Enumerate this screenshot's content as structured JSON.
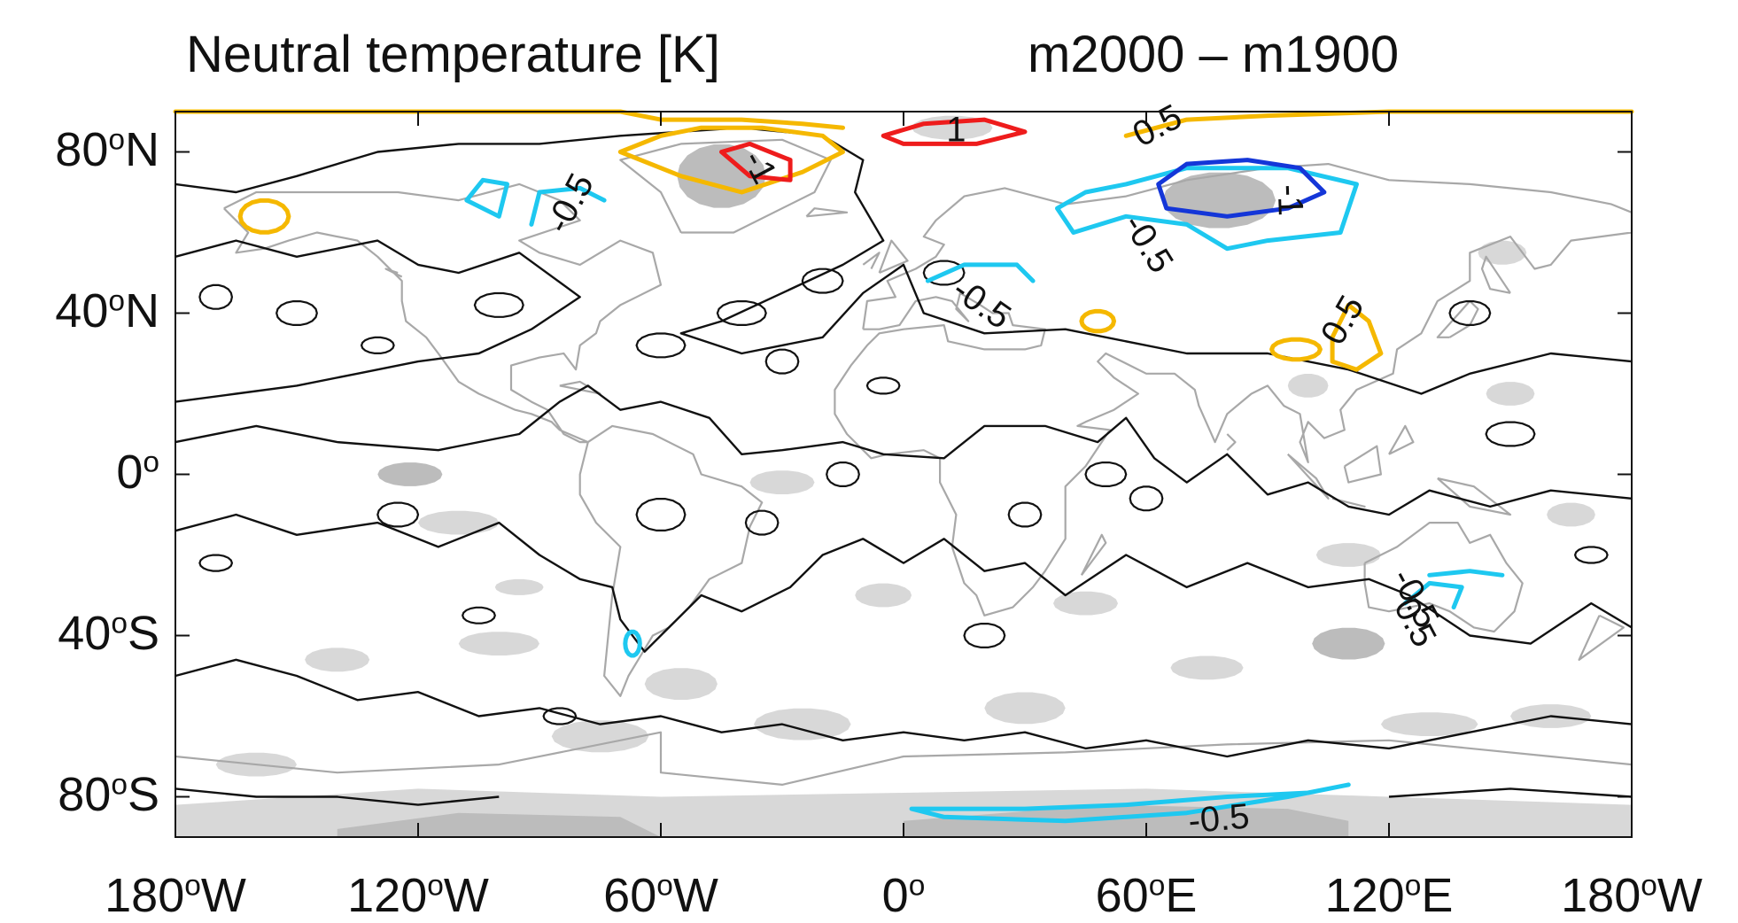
{
  "title_left": "Neutral temperature [K]",
  "title_right": "m2000 – m1900",
  "y_axis_labels": [
    {
      "deg": "80",
      "hemi": "N",
      "lat": 80
    },
    {
      "deg": "40",
      "hemi": "N",
      "lat": 40
    },
    {
      "deg": "0",
      "hemi": "",
      "lat": 0
    },
    {
      "deg": "40",
      "hemi": "S",
      "lat": -40
    },
    {
      "deg": "80",
      "hemi": "S",
      "lat": -80
    }
  ],
  "x_axis_labels": [
    {
      "deg": "180",
      "hemi": "W",
      "lon": -180
    },
    {
      "deg": "120",
      "hemi": "W",
      "lon": -120
    },
    {
      "deg": "60",
      "hemi": "W",
      "lon": -60
    },
    {
      "deg": "0",
      "hemi": "",
      "lon": 0
    },
    {
      "deg": "60",
      "hemi": "E",
      "lon": 60
    },
    {
      "deg": "120",
      "hemi": "E",
      "lon": 120
    },
    {
      "deg": "180",
      "hemi": "W",
      "lon": 180
    }
  ],
  "contour_labels": [
    {
      "text": "-0.5",
      "lon": -82,
      "lat": 67,
      "rot": -62
    },
    {
      "text": "-1",
      "lon": -36,
      "lat": 76,
      "rot": 62
    },
    {
      "text": "1",
      "lon": 13,
      "lat": 85,
      "rot": 0
    },
    {
      "text": "0.5",
      "lon": 63,
      "lat": 86,
      "rot": -28
    },
    {
      "text": "-0.5",
      "lon": 60,
      "lat": 57,
      "rot": 58
    },
    {
      "text": "-1",
      "lon": 95,
      "lat": 68,
      "rot": 88
    },
    {
      "text": "-0.5",
      "lon": 19,
      "lat": 42,
      "rot": 35
    },
    {
      "text": "0.5",
      "lon": 109,
      "lat": 38,
      "rot": -60
    },
    {
      "text": "-0.5",
      "lon": 126,
      "lat": -31,
      "rot": 62
    },
    {
      "text": "0.5",
      "lon": 126,
      "lat": -37,
      "rot": 62
    },
    {
      "text": "-0.5",
      "lon": 78,
      "lat": -86,
      "rot": -5
    }
  ],
  "colors": {
    "positive_0_5": "#f5b800",
    "positive_1": "#ee1c1c",
    "negative_0_5": "#1ec8f0",
    "negative_1": "#1436d8",
    "zero_contour": "#111111",
    "coastline": "#a8a8a8",
    "shading_light": "#d8d8d8",
    "shading_dark": "#bcbcbc"
  }
}
